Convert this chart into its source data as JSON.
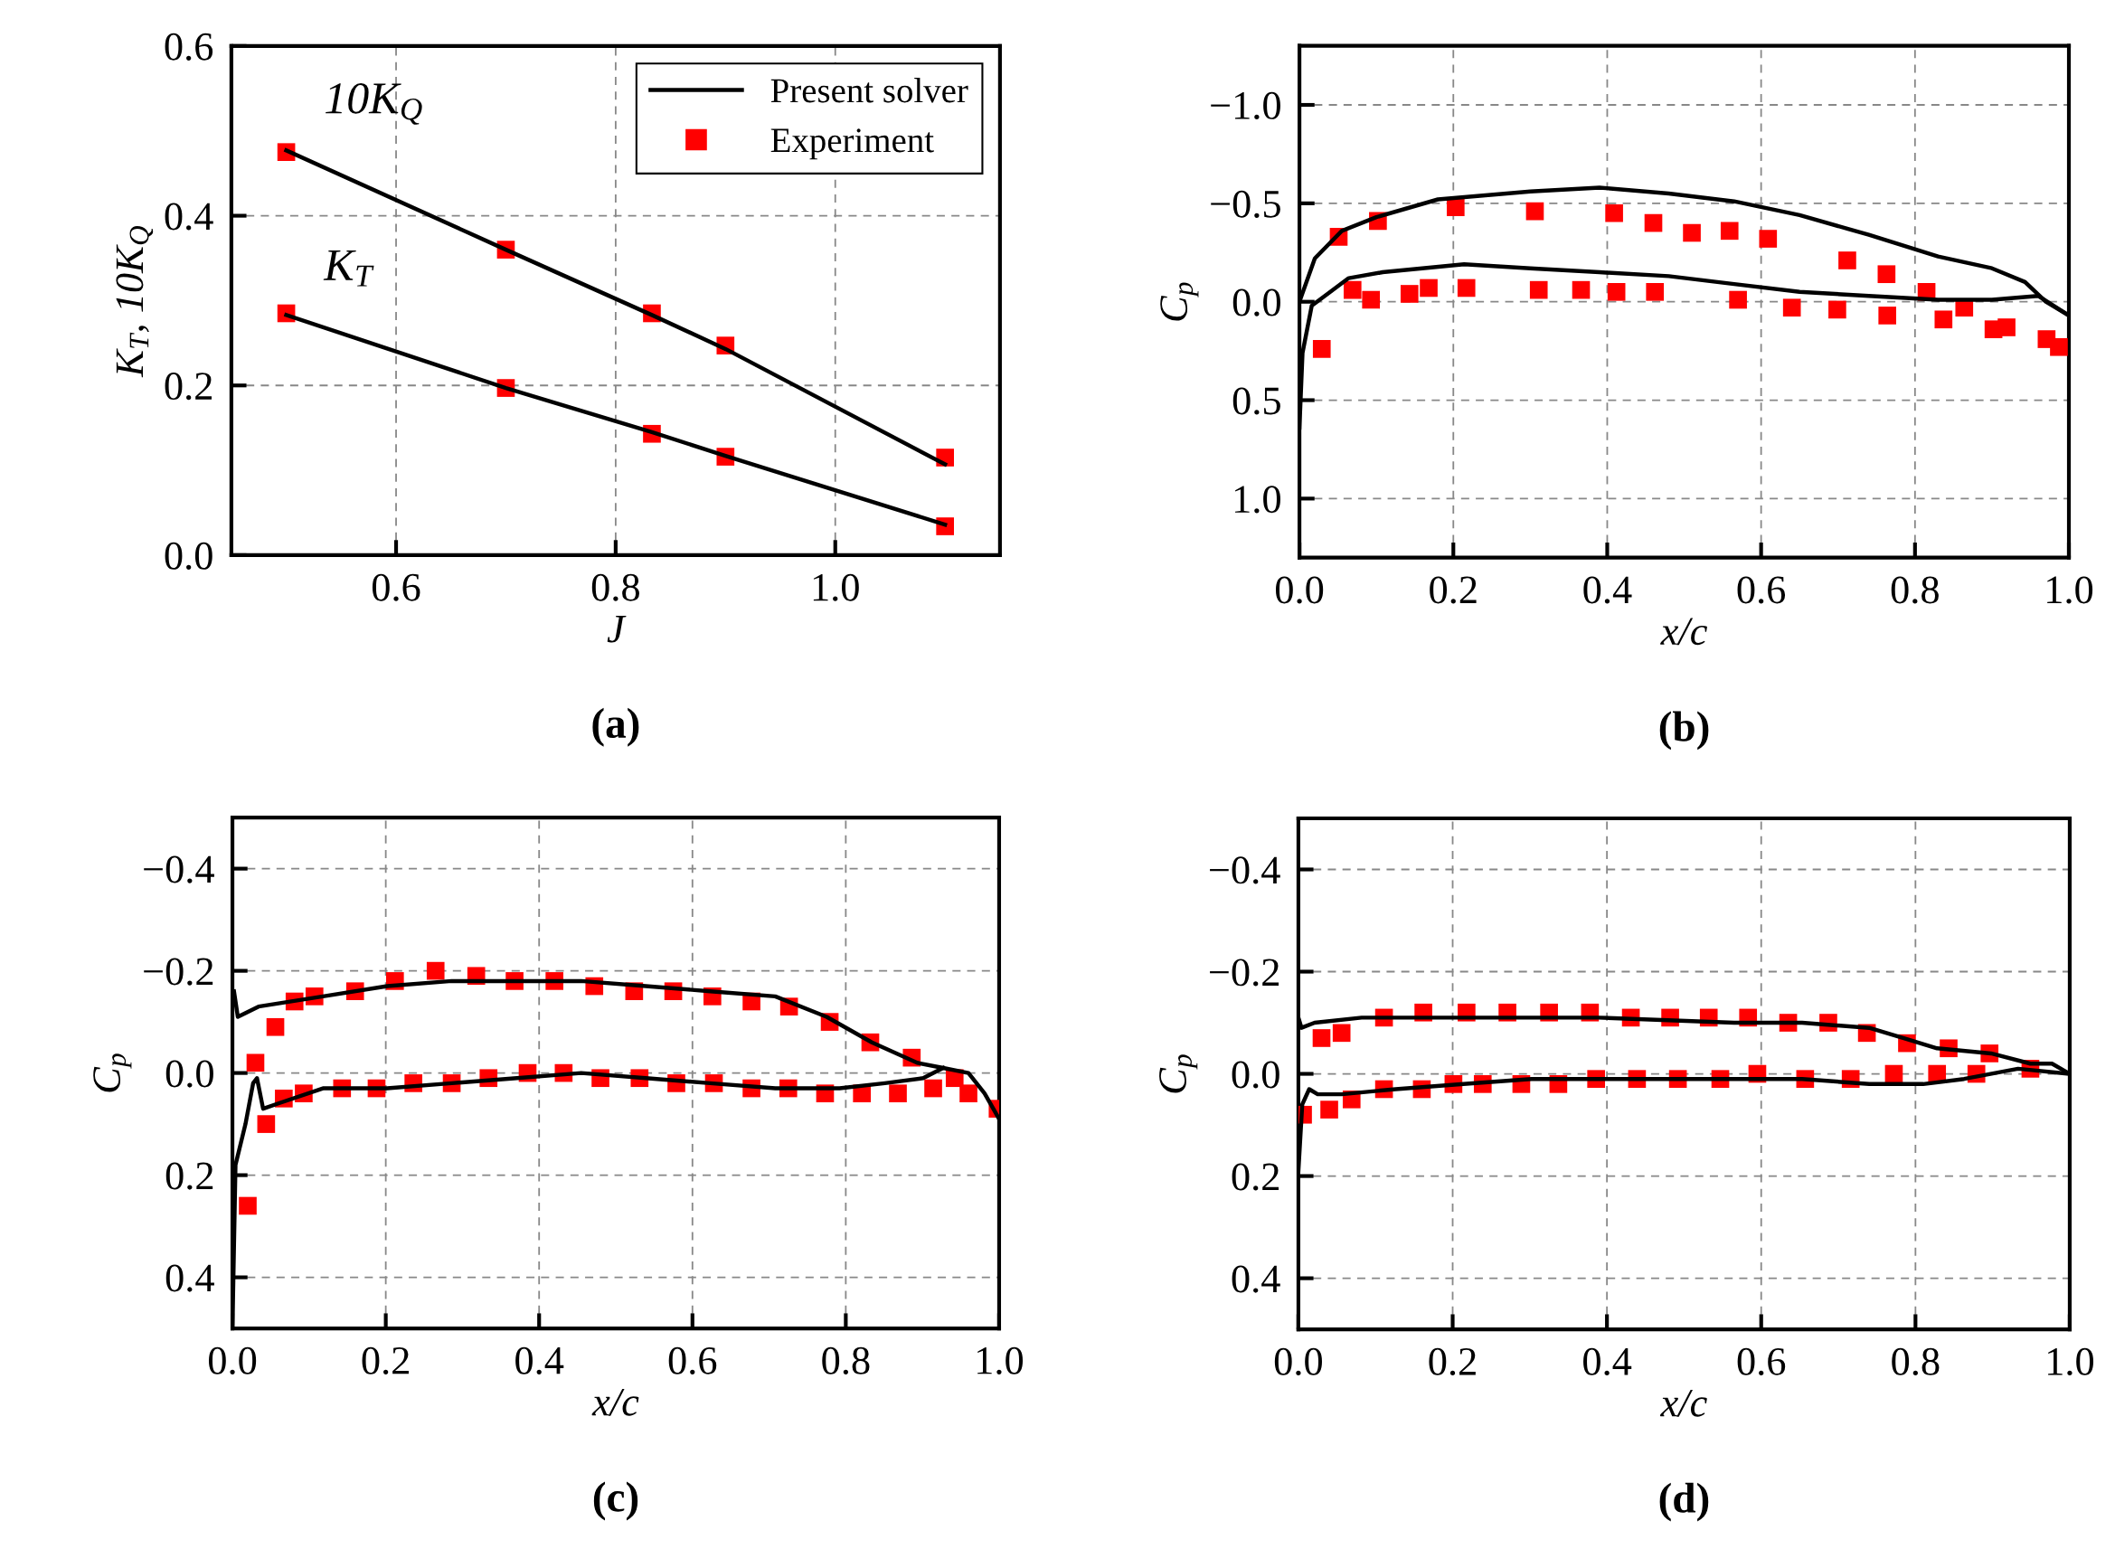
{
  "chart_data": [
    {
      "type": "line",
      "xlabel": "J",
      "ylabel": "K$_{T}$, 10K$_{Q}$",
      "xlim": [
        0.45,
        1.15
      ],
      "xticks": [
        {
          "value": 0.6,
          "label": "0.6"
        },
        {
          "value": 0.8,
          "label": "0.8"
        },
        {
          "value": 1.0,
          "label": "1.0"
        }
      ],
      "ylim": [
        0,
        0.6
      ],
      "yticks": [
        {
          "value": 0.0,
          "label": "0.0"
        },
        {
          "value": 0.2,
          "label": "0.2"
        },
        {
          "value": 0.4,
          "label": "0.4"
        },
        {
          "value": 0.6,
          "label": "0.6"
        }
      ],
      "grid": true,
      "legend": "top right",
      "line_style": "solid",
      "annotations": [
        {
          "text": "10K$_{Q}$",
          "x": 0.5,
          "y": 0.477
        },
        {
          "text": "K$_{T}$",
          "x": 0.5,
          "y": 0.283
        },
        "(a)"
      ],
      "series": [
        {
          "name": "Present solver",
          "type": "line",
          "color": "#000000",
          "marker": "none",
          "x": [
            0.5,
            0.7,
            0.833,
            0.9,
            1.1
          ],
          "values": [
            0.477,
            0.36,
            0.283,
            0.243,
            0.107
          ]
        },
        {
          "type": "line",
          "color": "#000000",
          "marker": "none",
          "x": [
            0.5,
            0.7,
            0.833,
            0.9,
            1.1
          ],
          "values": [
            0.283,
            0.197,
            0.145,
            0.117,
            0.036
          ]
        },
        {
          "name": "Experiment",
          "type": "scatter",
          "color": "#ff0000",
          "marker": "square",
          "x": [
            0.5,
            0.7,
            0.833,
            0.9,
            1.1,
            0.5,
            0.7,
            0.833,
            0.9,
            1.1
          ],
          "values": [
            0.475,
            0.36,
            0.285,
            0.247,
            0.115,
            0.285,
            0.197,
            0.143,
            0.116,
            0.034
          ]
        }
      ]
    },
    {
      "type": "line",
      "xlabel": "x/c",
      "ylabel": "C$_{p}$",
      "xlim": [
        0,
        1
      ],
      "xticks": [
        {
          "value": 0.0,
          "label": "0.0"
        },
        {
          "value": 0.2,
          "label": "0.2"
        },
        {
          "value": 0.4,
          "label": "0.4"
        },
        {
          "value": 0.6,
          "label": "0.6"
        },
        {
          "value": 0.8,
          "label": "0.8"
        },
        {
          "value": 1.0,
          "label": "1.0"
        }
      ],
      "ylim": [
        1.3,
        -1.3
      ],
      "yticks": [
        {
          "value": -1.0,
          "label": "−1.0"
        },
        {
          "value": -0.5,
          "label": "−0.5"
        },
        {
          "value": 0.0,
          "label": "0.0"
        },
        {
          "value": 0.5,
          "label": "0.5"
        },
        {
          "value": 1.0,
          "label": "1.0"
        }
      ],
      "grid": true,
      "line_style": "solid",
      "annotations": [
        "(b)"
      ],
      "series": [
        {
          "type": "line",
          "color": "#000000",
          "marker": "none",
          "x": [
            0,
            0.02,
            0.055,
            0.1,
            0.18,
            0.3,
            0.39,
            0.48,
            0.565,
            0.65,
            0.74,
            0.83,
            0.9,
            0.943,
            0.97,
            1.0
          ],
          "values": [
            0.0,
            -0.22,
            -0.36,
            -0.43,
            -0.52,
            -0.56,
            -0.58,
            -0.55,
            -0.51,
            -0.44,
            -0.34,
            -0.23,
            -0.17,
            -0.1,
            0.0,
            0.07
          ]
        },
        {
          "type": "line",
          "color": "#000000",
          "marker": "none",
          "x": [
            0,
            0.004,
            0.016,
            0.033,
            0.064,
            0.108,
            0.214,
            0.3,
            0.39,
            0.48,
            0.565,
            0.65,
            0.74,
            0.83,
            0.9,
            0.96,
            1.0
          ],
          "values": [
            0.64,
            0.26,
            0.02,
            -0.03,
            -0.12,
            -0.15,
            -0.19,
            -0.17,
            -0.15,
            -0.13,
            -0.09,
            -0.05,
            -0.03,
            -0.01,
            -0.01,
            -0.03,
            0.07
          ]
        },
        {
          "type": "scatter",
          "color": "#ff0000",
          "marker": "square",
          "x": [
            0.029,
            0.051,
            0.069,
            0.093,
            0.102,
            0.143,
            0.168,
            0.203,
            0.217,
            0.306,
            0.311,
            0.366,
            0.409,
            0.412,
            0.46,
            0.462,
            0.51,
            0.559,
            0.57,
            0.609,
            0.64,
            0.699,
            0.712,
            0.763,
            0.764,
            0.815,
            0.837,
            0.864,
            0.902,
            0.919,
            0.971,
            0.987
          ],
          "values": [
            0.24,
            -0.33,
            -0.06,
            -0.01,
            -0.41,
            -0.04,
            -0.07,
            -0.48,
            -0.07,
            -0.46,
            -0.06,
            -0.06,
            -0.45,
            -0.05,
            -0.4,
            -0.05,
            -0.35,
            -0.36,
            -0.01,
            -0.32,
            0.03,
            0.04,
            -0.21,
            -0.14,
            0.07,
            -0.05,
            0.09,
            0.03,
            0.14,
            0.13,
            0.19,
            0.23
          ]
        }
      ]
    },
    {
      "type": "line",
      "xlabel": "x/c",
      "ylabel": "C$_{p}$",
      "xlim": [
        0,
        1
      ],
      "xticks": [
        {
          "value": 0.0,
          "label": "0.0"
        },
        {
          "value": 0.2,
          "label": "0.2"
        },
        {
          "value": 0.4,
          "label": "0.4"
        },
        {
          "value": 0.6,
          "label": "0.6"
        },
        {
          "value": 0.8,
          "label": "0.8"
        },
        {
          "value": 1.0,
          "label": "1.0"
        }
      ],
      "ylim": [
        0.5,
        -0.5
      ],
      "yticks": [
        {
          "value": -0.4,
          "label": "−0.4"
        },
        {
          "value": -0.2,
          "label": "−0.2"
        },
        {
          "value": 0.0,
          "label": "0.0"
        },
        {
          "value": 0.2,
          "label": "0.2"
        },
        {
          "value": 0.4,
          "label": "0.4"
        }
      ],
      "grid": true,
      "line_style": "solid",
      "annotations": [
        "(c)"
      ],
      "series": [
        {
          "type": "line",
          "color": "#000000",
          "marker": "none",
          "x": [
            0.002,
            0.007,
            0.034,
            0.118,
            0.202,
            0.286,
            0.371,
            0.455,
            0.539,
            0.623,
            0.708,
            0.775,
            0.834,
            0.893,
            0.927,
            0.96,
            0.981,
            1.0
          ],
          "values": [
            -0.16,
            -0.11,
            -0.13,
            -0.15,
            -0.17,
            -0.18,
            -0.18,
            -0.18,
            -0.17,
            -0.16,
            -0.15,
            -0.11,
            -0.06,
            -0.02,
            -0.01,
            0.0,
            0.04,
            0.09
          ]
        },
        {
          "type": "line",
          "color": "#000000",
          "marker": "none",
          "x": [
            0,
            0.004,
            0.017,
            0.027,
            0.032,
            0.04,
            0.059,
            0.118,
            0.202,
            0.286,
            0.371,
            0.455,
            0.539,
            0.623,
            0.708,
            0.792,
            0.851,
            0.901,
            0.927
          ],
          "values": [
            0.5,
            0.18,
            0.1,
            0.02,
            0.01,
            0.07,
            0.06,
            0.03,
            0.03,
            0.02,
            0.01,
            0.0,
            0.01,
            0.02,
            0.03,
            0.03,
            0.02,
            0.01,
            -0.01
          ]
        },
        {
          "type": "scatter",
          "color": "#ff0000",
          "marker": "square",
          "x": [
            0.02,
            0.03,
            0.044,
            0.056,
            0.067,
            0.081,
            0.093,
            0.107,
            0.143,
            0.16,
            0.188,
            0.212,
            0.236,
            0.265,
            0.286,
            0.318,
            0.334,
            0.368,
            0.385,
            0.42,
            0.432,
            0.472,
            0.48,
            0.524,
            0.531,
            0.575,
            0.579,
            0.626,
            0.628,
            0.677,
            0.677,
            0.726,
            0.725,
            0.779,
            0.773,
            0.832,
            0.821,
            0.886,
            0.868,
            0.914,
            0.942,
            0.96,
            0.998
          ],
          "values": [
            0.26,
            -0.02,
            0.1,
            -0.09,
            0.05,
            -0.14,
            0.04,
            -0.15,
            0.03,
            -0.16,
            0.03,
            -0.18,
            0.02,
            -0.2,
            0.02,
            -0.19,
            0.01,
            -0.18,
            0.0,
            -0.18,
            0.0,
            -0.17,
            0.01,
            -0.16,
            0.01,
            -0.16,
            0.02,
            -0.15,
            0.02,
            -0.14,
            0.03,
            -0.13,
            0.03,
            -0.1,
            0.04,
            -0.06,
            0.04,
            -0.03,
            0.04,
            0.03,
            0.01,
            0.04,
            0.07
          ]
        }
      ]
    },
    {
      "type": "line",
      "xlabel": "x/c",
      "ylabel": "C$_{p}$",
      "xlim": [
        0,
        1
      ],
      "xticks": [
        {
          "value": 0.0,
          "label": "0.0"
        },
        {
          "value": 0.2,
          "label": "0.2"
        },
        {
          "value": 0.4,
          "label": "0.4"
        },
        {
          "value": 0.6,
          "label": "0.6"
        },
        {
          "value": 0.8,
          "label": "0.8"
        },
        {
          "value": 1.0,
          "label": "1.0"
        }
      ],
      "ylim": [
        0.5,
        -0.5
      ],
      "yticks": [
        {
          "value": -0.4,
          "label": "−0.4"
        },
        {
          "value": -0.2,
          "label": "−0.2"
        },
        {
          "value": 0.0,
          "label": "0.0"
        },
        {
          "value": 0.2,
          "label": "0.2"
        },
        {
          "value": 0.4,
          "label": "0.4"
        }
      ],
      "grid": true,
      "line_style": "solid",
      "annotations": [
        "(d)"
      ],
      "series": [
        {
          "type": "line",
          "color": "#000000",
          "marker": "none",
          "x": [
            0,
            0.004,
            0.021,
            0.082,
            0.214,
            0.389,
            0.565,
            0.653,
            0.74,
            0.784,
            0.828,
            0.898,
            0.949,
            0.977,
            1.0
          ],
          "values": [
            -0.11,
            -0.09,
            -0.1,
            -0.11,
            -0.11,
            -0.11,
            -0.1,
            -0.1,
            -0.09,
            -0.07,
            -0.05,
            -0.04,
            -0.02,
            -0.02,
            0.0
          ]
        },
        {
          "type": "line",
          "color": "#000000",
          "marker": "none",
          "x": [
            0,
            0.005,
            0.014,
            0.025,
            0.056,
            0.126,
            0.214,
            0.302,
            0.389,
            0.477,
            0.565,
            0.653,
            0.74,
            0.81,
            0.863,
            0.933,
            1.0
          ],
          "values": [
            0.19,
            0.06,
            0.03,
            0.04,
            0.04,
            0.03,
            0.02,
            0.01,
            0.01,
            0.01,
            0.01,
            0.01,
            0.02,
            0.02,
            0.01,
            -0.01,
            0.0
          ]
        },
        {
          "type": "scatter",
          "color": "#ff0000",
          "marker": "square",
          "x": [
            0.006,
            0.03,
            0.04,
            0.056,
            0.069,
            0.111,
            0.111,
            0.162,
            0.16,
            0.218,
            0.201,
            0.239,
            0.271,
            0.289,
            0.325,
            0.337,
            0.378,
            0.386,
            0.431,
            0.439,
            0.482,
            0.492,
            0.532,
            0.547,
            0.583,
            0.595,
            0.635,
            0.657,
            0.687,
            0.716,
            0.737,
            0.772,
            0.789,
            0.828,
            0.843,
            0.879,
            0.896,
            0.949
          ],
          "values": [
            0.08,
            -0.07,
            0.07,
            -0.08,
            0.05,
            -0.11,
            0.03,
            -0.12,
            0.03,
            -0.12,
            0.02,
            0.02,
            -0.12,
            0.02,
            -0.12,
            0.02,
            -0.12,
            0.01,
            -0.11,
            0.01,
            -0.11,
            0.01,
            -0.11,
            0.01,
            -0.11,
            0.0,
            -0.1,
            0.01,
            -0.1,
            0.01,
            -0.08,
            0.0,
            -0.06,
            0.0,
            -0.05,
            0.0,
            -0.04,
            -0.01
          ]
        }
      ]
    }
  ]
}
